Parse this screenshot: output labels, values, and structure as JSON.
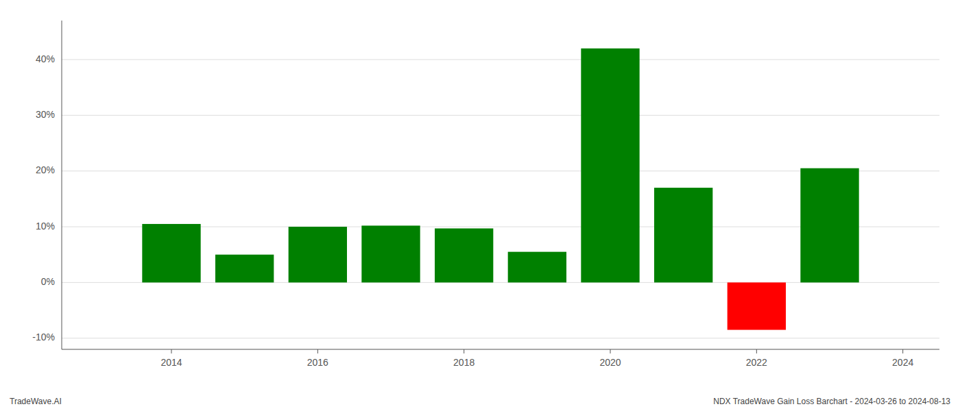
{
  "chart_data": {
    "type": "bar",
    "x": [
      2014,
      2015,
      2016,
      2017,
      2018,
      2019,
      2020,
      2021,
      2022,
      2023
    ],
    "values": [
      10.5,
      5.0,
      10.0,
      10.2,
      9.7,
      5.5,
      42.0,
      17.0,
      -8.5,
      20.5
    ],
    "colors": [
      "#008000",
      "#008000",
      "#008000",
      "#008000",
      "#008000",
      "#008000",
      "#008000",
      "#008000",
      "#ff0000",
      "#008000"
    ],
    "xlim": [
      2012.5,
      2024.5
    ],
    "xticks": [
      2014,
      2016,
      2018,
      2020,
      2022,
      2024
    ],
    "ylim": [
      -12,
      47
    ],
    "yticks": [
      {
        "value": -10,
        "label": "-10%"
      },
      {
        "value": 0,
        "label": "0%"
      },
      {
        "value": 10,
        "label": "10%"
      },
      {
        "value": 20,
        "label": "20%"
      },
      {
        "value": 30,
        "label": "30%"
      },
      {
        "value": 40,
        "label": "40%"
      }
    ],
    "grid": true,
    "annotations": [
      "TradeWave.AI",
      "NDX TradeWave Gain Loss Barchart - 2024-03-26 to 2024-08-13"
    ]
  }
}
